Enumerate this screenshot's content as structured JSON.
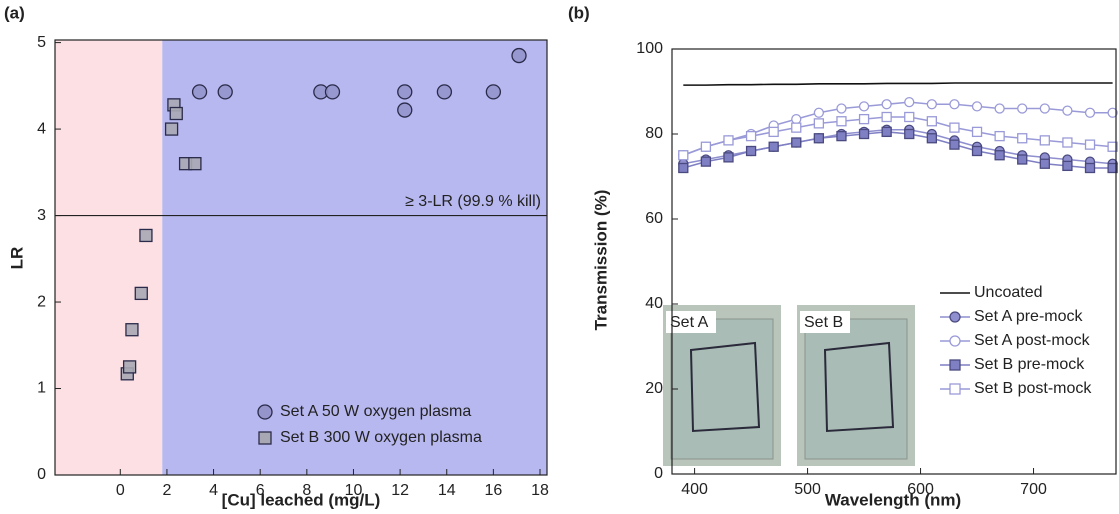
{
  "chart_data": [
    {
      "type": "scatter",
      "panel_label": "(a)",
      "x_label": "[Cu] leached (mg/L)",
      "y_label": "LR",
      "xlim": [
        -2.8,
        18.3
      ],
      "ylim": [
        0,
        5.03
      ],
      "xticks": [
        0,
        2,
        4,
        6,
        8,
        10,
        12,
        14,
        16,
        18
      ],
      "yticks": [
        0,
        1,
        2,
        3,
        4,
        5
      ],
      "regions": [
        {
          "xlim": [
            -2.8,
            1.8
          ],
          "color": "#fde0e4"
        },
        {
          "xlim": [
            1.8,
            18.3
          ],
          "color": "#b8b8f0"
        }
      ],
      "hline": 3,
      "annotation": "≥ 3-LR (99.9 % kill)",
      "series": [
        {
          "name": "Set A 50 W oxygen plasma",
          "marker": "circle",
          "color": "#9595cc",
          "x": [
            3.4,
            4.5,
            8.6,
            9.1,
            12.2,
            12.2,
            13.9,
            16.0,
            17.1
          ],
          "values": [
            4.43,
            4.43,
            4.43,
            4.43,
            4.43,
            4.22,
            4.43,
            4.43,
            4.85
          ]
        },
        {
          "name": "Set B 300 W oxygen plasma",
          "marker": "square",
          "color": "#a8a8b4",
          "x": [
            0.3,
            0.4,
            0.5,
            0.9,
            1.1,
            2.2,
            2.3,
            2.4,
            2.8,
            3.2
          ],
          "values": [
            1.17,
            1.25,
            1.68,
            2.1,
            2.77,
            4.0,
            4.28,
            4.18,
            3.6,
            3.6
          ]
        }
      ]
    },
    {
      "type": "line",
      "panel_label": "(b)",
      "x_label": "Wavelength (nm)",
      "y_label": "Transmission (%)",
      "xlim": [
        380,
        773
      ],
      "ylim": [
        0,
        100
      ],
      "xticks": [
        400,
        500,
        600,
        700
      ],
      "yticks": [
        0,
        20,
        40,
        60,
        80,
        100
      ],
      "inset_labels": [
        "Set A",
        "Set B"
      ],
      "x": [
        390,
        410,
        430,
        450,
        470,
        490,
        510,
        530,
        550,
        570,
        590,
        610,
        630,
        650,
        670,
        690,
        710,
        730,
        750,
        770
      ],
      "series": [
        {
          "name": "Uncoated",
          "marker": "none",
          "color": "#111111",
          "values": [
            91.5,
            91.5,
            91.6,
            91.6,
            91.7,
            91.7,
            91.8,
            91.8,
            91.8,
            91.9,
            91.9,
            91.9,
            92,
            92,
            92,
            92,
            92,
            92,
            92,
            92
          ]
        },
        {
          "name": "Set A pre-mock",
          "marker": "circle",
          "filled": true,
          "color": "#8f8fcf",
          "values": [
            73,
            74,
            75,
            76,
            77,
            78,
            79,
            80,
            80.5,
            81,
            81,
            80,
            78.5,
            77,
            76,
            75,
            74.5,
            74,
            73.5,
            73
          ]
        },
        {
          "name": "Set A post-mock",
          "marker": "circle",
          "filled": false,
          "color": "#9a9ad8",
          "values": [
            75,
            77,
            78.5,
            80,
            82,
            83.5,
            85,
            86,
            86.5,
            87,
            87.5,
            87,
            87,
            86.5,
            86,
            86,
            86,
            85.5,
            85,
            85
          ]
        },
        {
          "name": "Set B pre-mock",
          "marker": "square",
          "filled": true,
          "color": "#7f7fc4",
          "values": [
            72,
            73.5,
            74.5,
            76,
            77,
            78,
            79,
            79.5,
            80,
            80.5,
            80,
            79,
            77.5,
            76,
            75,
            74,
            73,
            72.5,
            72,
            72
          ]
        },
        {
          "name": "Set B post-mock",
          "marker": "square",
          "filled": false,
          "color": "#9a9ad8",
          "values": [
            75,
            77,
            78.5,
            79.5,
            80.5,
            81.5,
            82.5,
            83,
            83.5,
            84,
            84,
            83,
            81.5,
            80.5,
            79.5,
            79,
            78.5,
            78,
            77.5,
            77
          ]
        }
      ]
    }
  ]
}
